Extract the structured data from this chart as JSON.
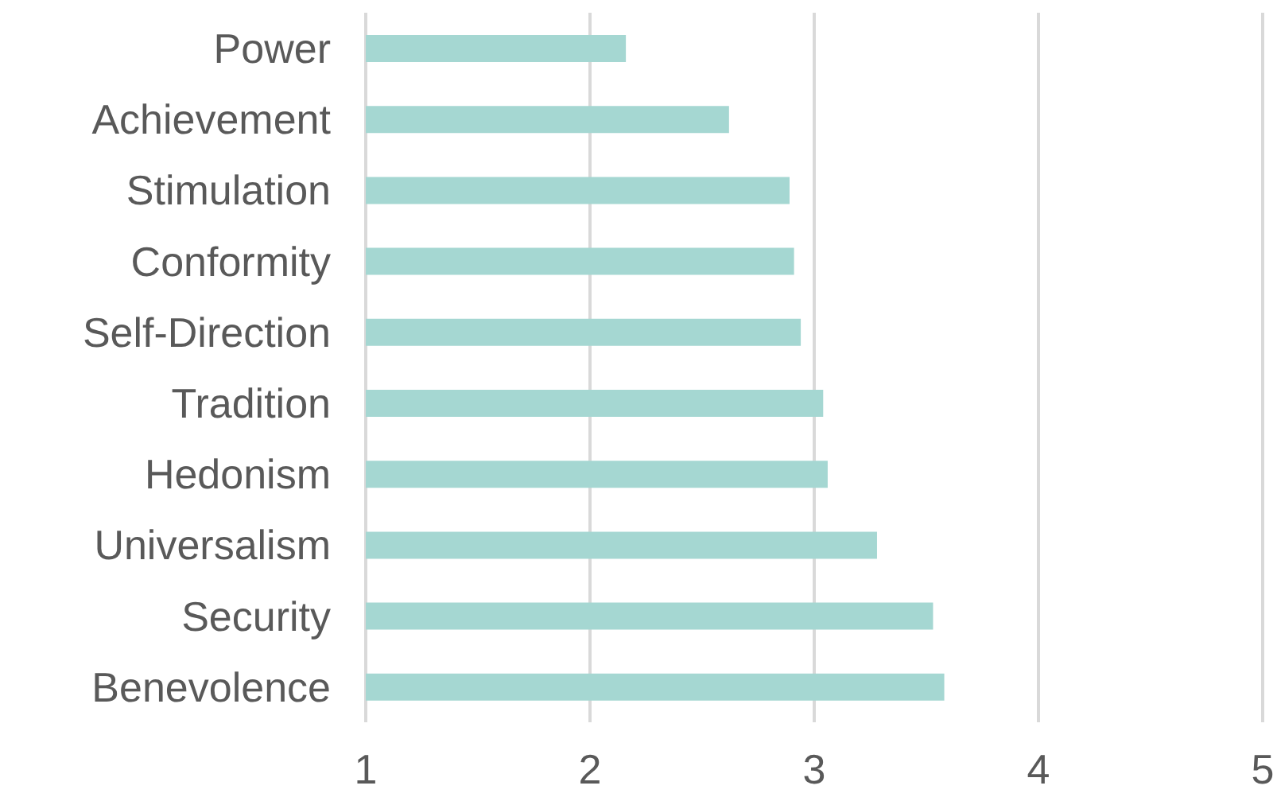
{
  "chart_data": {
    "type": "bar",
    "orientation": "horizontal",
    "categories": [
      "Power",
      "Achievement",
      "Stimulation",
      "Conformity",
      "Self-Direction",
      "Tradition",
      "Hedonism",
      "Universalism",
      "Security",
      "Benevolence"
    ],
    "values": [
      2.16,
      2.62,
      2.89,
      2.91,
      2.94,
      3.04,
      3.06,
      3.28,
      3.53,
      3.58
    ],
    "color": "#a5d7d2",
    "xlim": [
      1,
      5
    ],
    "xticks": [
      1,
      2,
      3,
      4,
      5
    ],
    "grid": "x"
  }
}
